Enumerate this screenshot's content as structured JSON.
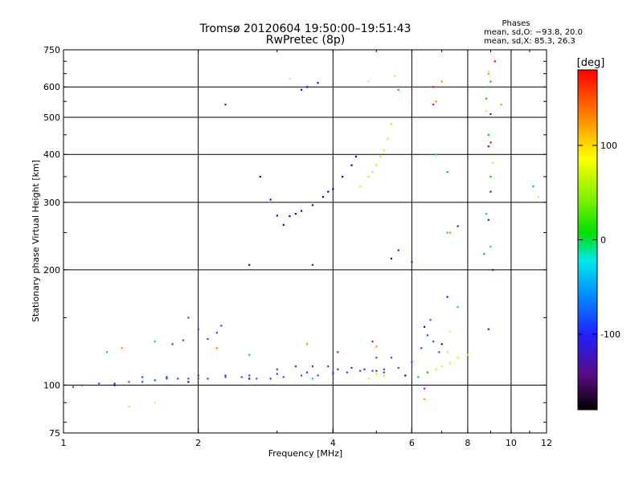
{
  "chart_data": {
    "type": "scatter",
    "title": "Tromsø 20120604 19:50:00–19:51:43",
    "subtitle": "RwPretec (8p)",
    "xlabel": "Frequency [MHz]",
    "ylabel": "Stationary phase Virtual Height [km]",
    "x_scale": "log",
    "y_scale": "log",
    "xlim": [
      1,
      12
    ],
    "ylim": [
      75,
      750
    ],
    "x_ticks": [
      1,
      2,
      4,
      6,
      8,
      10,
      12
    ],
    "y_ticks": [
      75,
      100,
      200,
      300,
      400,
      500,
      600,
      750
    ],
    "grid": true,
    "stats": {
      "heading": "Phases",
      "line1": "mean, sd,O: −93.8, 20.0",
      "line2": "mean, sd,X:  85.3, 26.3"
    },
    "colorbar": {
      "label": "[deg]",
      "ticks": [
        100,
        0,
        -100
      ],
      "range": [
        -180,
        180
      ]
    },
    "series": [
      {
        "color": "#1e50ff",
        "points": [
          [
            1.05,
            99
          ],
          [
            1.1,
            100
          ],
          [
            1.2,
            101
          ],
          [
            1.3,
            101
          ],
          [
            1.4,
            102
          ],
          [
            1.5,
            102
          ],
          [
            1.6,
            103
          ],
          [
            1.7,
            104
          ],
          [
            1.8,
            104
          ],
          [
            1.9,
            104
          ],
          [
            2.0,
            104
          ],
          [
            2.1,
            104
          ],
          [
            2.3,
            105
          ],
          [
            2.5,
            105
          ],
          [
            2.7,
            104
          ],
          [
            2.9,
            104
          ],
          [
            3.1,
            105
          ],
          [
            3.4,
            106
          ],
          [
            3.7,
            106
          ],
          [
            4.0,
            107
          ],
          [
            4.3,
            108
          ],
          [
            4.6,
            109
          ],
          [
            4.9,
            109
          ],
          [
            5.2,
            110
          ],
          [
            5.6,
            111
          ],
          [
            1.9,
            150
          ],
          [
            2.0,
            140
          ],
          [
            2.1,
            132
          ],
          [
            2.2,
            137
          ],
          [
            2.25,
            143
          ],
          [
            1.75,
            128
          ],
          [
            1.85,
            131
          ],
          [
            6.3,
            125
          ],
          [
            6.5,
            135
          ],
          [
            6.7,
            130
          ],
          [
            6.9,
            122
          ],
          [
            6.6,
            148
          ],
          [
            5.0,
            118
          ],
          [
            5.4,
            118
          ],
          [
            6.0,
            115
          ]
        ]
      },
      {
        "color": "#0000dd",
        "points": [
          [
            3.0,
            277
          ],
          [
            3.2,
            276
          ],
          [
            3.4,
            285
          ],
          [
            3.6,
            295
          ],
          [
            3.8,
            310
          ],
          [
            4.0,
            325
          ],
          [
            4.2,
            350
          ],
          [
            4.4,
            375
          ],
          [
            4.5,
            395
          ],
          [
            3.3,
            280
          ],
          [
            3.9,
            320
          ],
          [
            3.4,
            590
          ],
          [
            3.5,
            600
          ],
          [
            3.7,
            615
          ],
          [
            2.75,
            350
          ],
          [
            2.9,
            305
          ],
          [
            3.1,
            262
          ]
        ]
      },
      {
        "color": "#2a3cff",
        "points": [
          [
            1.5,
            105
          ],
          [
            1.7,
            105
          ],
          [
            2.0,
            106
          ],
          [
            2.3,
            106
          ],
          [
            2.6,
            106
          ],
          [
            3.0,
            107
          ],
          [
            3.5,
            108
          ],
          [
            4.0,
            108
          ]
        ]
      },
      {
        "color": "#e0f000",
        "points": [
          [
            4.6,
            330
          ],
          [
            4.8,
            350
          ],
          [
            5.0,
            375
          ],
          [
            5.2,
            410
          ],
          [
            5.3,
            440
          ],
          [
            5.4,
            480
          ],
          [
            5.1,
            395
          ],
          [
            4.9,
            360
          ],
          [
            6.8,
            110
          ],
          [
            7.0,
            112
          ],
          [
            7.3,
            114
          ],
          [
            7.6,
            118
          ],
          [
            8.0,
            120
          ],
          [
            6.5,
            108
          ],
          [
            4.8,
            104
          ],
          [
            5.0,
            107
          ],
          [
            5.2,
            106
          ],
          [
            7.2,
            122
          ]
        ]
      },
      {
        "color": "#7a1fa0",
        "points": [
          [
            3.0,
            110
          ],
          [
            3.3,
            112
          ],
          [
            3.6,
            112
          ],
          [
            3.9,
            112
          ],
          [
            4.1,
            110
          ],
          [
            4.4,
            111
          ],
          [
            4.7,
            110
          ],
          [
            5.0,
            109
          ],
          [
            5.2,
            108
          ]
        ]
      },
      {
        "color": "#00c8e8",
        "points": [
          [
            1.25,
            122
          ],
          [
            1.6,
            130
          ],
          [
            2.6,
            120
          ],
          [
            3.6,
            104
          ],
          [
            7.6,
            160
          ],
          [
            7.2,
            250
          ],
          [
            8.8,
            280
          ],
          [
            9.0,
            230
          ],
          [
            6.8,
            400
          ]
        ]
      },
      {
        "color": "#00d000",
        "points": [
          [
            9.0,
            620
          ],
          [
            8.8,
            560
          ],
          [
            8.9,
            450
          ],
          [
            9.0,
            350
          ],
          [
            8.7,
            220
          ],
          [
            6.2,
            105
          ],
          [
            6.5,
            108
          ],
          [
            8.9,
            600
          ],
          [
            11.2,
            330
          ],
          [
            7.2,
            360
          ],
          [
            5.6,
            590
          ]
        ]
      },
      {
        "color": "#ff8c00",
        "points": [
          [
            7.0,
            620
          ],
          [
            7.3,
            250
          ],
          [
            8.9,
            650
          ],
          [
            9.5,
            540
          ],
          [
            6.8,
            550
          ],
          [
            1.35,
            125
          ],
          [
            2.2,
            125
          ],
          [
            3.5,
            128
          ],
          [
            5.0,
            126
          ],
          [
            6.4,
            92
          ]
        ]
      },
      {
        "color": "#ee1010",
        "points": [
          [
            6.7,
            540
          ],
          [
            9.0,
            430
          ],
          [
            4.9,
            130
          ],
          [
            6.4,
            98
          ],
          [
            6.7,
            600
          ],
          [
            9.2,
            700
          ],
          [
            4.1,
            122
          ]
        ]
      },
      {
        "color": "#f0e060",
        "points": [
          [
            8.9,
            660
          ],
          [
            8.8,
            520
          ],
          [
            9.1,
            380
          ],
          [
            11.5,
            310
          ],
          [
            5.5,
            640
          ],
          [
            3.2,
            630
          ],
          [
            4.8,
            620
          ],
          [
            1.4,
            88
          ],
          [
            1.6,
            90
          ],
          [
            7.3,
            138
          ]
        ]
      },
      {
        "color": "#7000b0",
        "points": [
          [
            9.0,
            510
          ],
          [
            8.9,
            420
          ],
          [
            9.0,
            320
          ],
          [
            8.9,
            270
          ],
          [
            9.1,
            200
          ],
          [
            8.9,
            140
          ],
          [
            7.6,
            260
          ],
          [
            7.2,
            170
          ],
          [
            5.6,
            225
          ],
          [
            3.6,
            206
          ],
          [
            2.3,
            540
          ],
          [
            6.0,
            210
          ]
        ]
      },
      {
        "color": "#10107a",
        "points": [
          [
            1.3,
            100
          ],
          [
            1.9,
            102
          ],
          [
            2.6,
            104
          ],
          [
            5.8,
            106
          ],
          [
            6.4,
            142
          ],
          [
            7.0,
            128
          ],
          [
            2.6,
            206
          ],
          [
            5.4,
            214
          ]
        ]
      }
    ]
  }
}
